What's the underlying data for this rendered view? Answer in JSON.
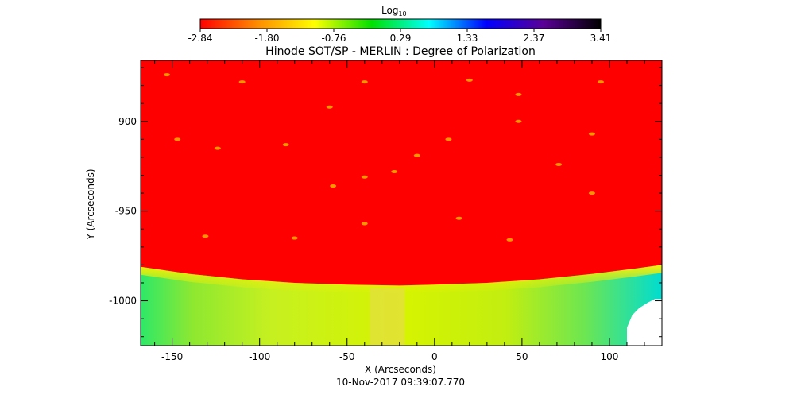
{
  "colorbar": {
    "label_main": "Log",
    "label_sub": "10",
    "ticks": [
      "-2.84",
      "-1.80",
      "-0.76",
      "0.29",
      "1.33",
      "2.37",
      "3.41"
    ],
    "tick_values": [
      -2.84,
      -1.8,
      -0.76,
      0.29,
      1.33,
      2.37,
      3.41
    ],
    "stops": [
      "#ff0000",
      "#ff8c00",
      "#ffff00",
      "#00e000",
      "#00ffff",
      "#0000ff",
      "#5a0096",
      "#000000"
    ]
  },
  "chart_data": {
    "type": "heatmap",
    "title": "Hinode SOT/SP - MERLIN : Degree of Polarization",
    "xlabel": "X (Arcseconds)",
    "ylabel": "Y (Arcseconds)",
    "xlim": [
      -168,
      130
    ],
    "ylim": [
      -1025,
      -866
    ],
    "x_ticks": [
      -150,
      -100,
      -50,
      0,
      50,
      100
    ],
    "x_tick_labels": [
      "-150",
      "-100",
      "-50",
      "0",
      "50",
      "100"
    ],
    "y_ticks": [
      -900,
      -950,
      -1000
    ],
    "y_tick_labels": [
      "-900",
      "-950",
      "-1000"
    ],
    "limb": {
      "x": [
        -168,
        -140,
        -110,
        -80,
        -50,
        -20,
        0,
        30,
        60,
        90,
        115,
        130
      ],
      "y": [
        -981,
        -985,
        -988,
        -990,
        -991,
        -991.5,
        -991,
        -990,
        -988,
        -985,
        -982,
        -980
      ]
    },
    "regions": [
      {
        "name": "disk",
        "value_log10": -2.84,
        "color": "#ff0000"
      },
      {
        "name": "off-limb",
        "value_log10": -0.8,
        "color": "#c8f000"
      },
      {
        "name": "saturated",
        "color": "#ffffff"
      }
    ],
    "speckles": [
      {
        "x": -153,
        "y": -874
      },
      {
        "x": -110,
        "y": -878
      },
      {
        "x": -40,
        "y": -878
      },
      {
        "x": 95,
        "y": -878
      },
      {
        "x": 20,
        "y": -877
      },
      {
        "x": 48,
        "y": -885
      },
      {
        "x": -60,
        "y": -892
      },
      {
        "x": -147,
        "y": -910
      },
      {
        "x": -124,
        "y": -915
      },
      {
        "x": -85,
        "y": -913
      },
      {
        "x": 8,
        "y": -910
      },
      {
        "x": 48,
        "y": -900
      },
      {
        "x": 90,
        "y": -907
      },
      {
        "x": -40,
        "y": -931
      },
      {
        "x": -23,
        "y": -928
      },
      {
        "x": -10,
        "y": -919
      },
      {
        "x": -58,
        "y": -936
      },
      {
        "x": 90,
        "y": -940
      },
      {
        "x": -40,
        "y": -957
      },
      {
        "x": 14,
        "y": -954
      },
      {
        "x": -80,
        "y": -965
      },
      {
        "x": -131,
        "y": -964
      },
      {
        "x": 43,
        "y": -966
      },
      {
        "x": 71,
        "y": -924
      }
    ],
    "annotation": "10-Nov-2017 09:39:07.770"
  }
}
